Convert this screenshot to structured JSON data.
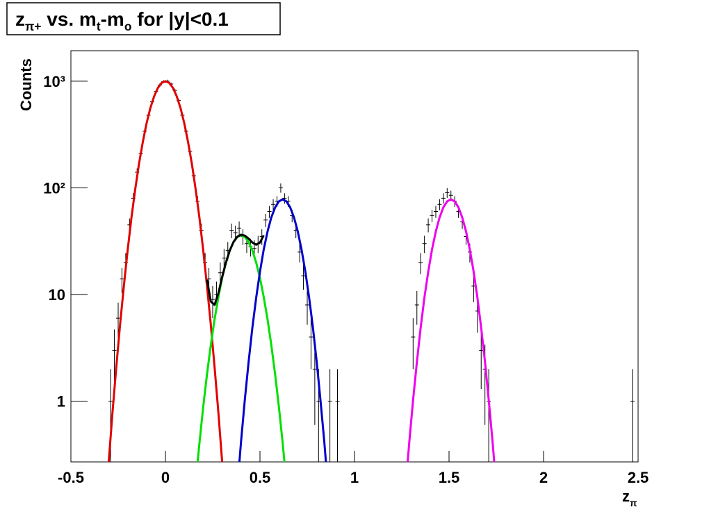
{
  "chart_data": {
    "type": "errorbar",
    "title_parts": [
      {
        "text": "z"
      },
      {
        "text": "π+",
        "sub": true
      },
      {
        "text": " vs. m"
      },
      {
        "text": "t",
        "sub": true
      },
      {
        "text": "-m"
      },
      {
        "text": "o",
        "sub": true
      },
      {
        "text": " for |y|<0.1"
      }
    ],
    "ylabel": "Counts",
    "xlabel_parts": [
      {
        "text": "z"
      },
      {
        "text": "π",
        "sub": true
      }
    ],
    "xlim": [
      -0.5,
      2.5
    ],
    "xticks": [
      -0.5,
      0,
      0.5,
      1,
      1.5,
      2,
      2.5
    ],
    "ylim": [
      0.27,
      1930
    ],
    "yscale": "log",
    "yticks": [
      1,
      10,
      {
        "value": 100,
        "label": "10²"
      },
      {
        "value": 1000,
        "label": "10³"
      }
    ],
    "series": [
      {
        "type": "errorbar",
        "color": "#000000",
        "x": [
          -0.29,
          -0.27,
          -0.25,
          -0.23,
          -0.21,
          -0.19,
          -0.17,
          -0.15,
          -0.13,
          -0.11,
          -0.09,
          -0.07,
          -0.05,
          -0.03,
          -0.01,
          0.01,
          0.03,
          0.05,
          0.07,
          0.09,
          0.11,
          0.13,
          0.15,
          0.17,
          0.19,
          0.21,
          0.23,
          0.25,
          0.27,
          0.29,
          0.31,
          0.33,
          0.35,
          0.37,
          0.39,
          0.41,
          0.43,
          0.45,
          0.47,
          0.49,
          0.51,
          0.53,
          0.55,
          0.57,
          0.59,
          0.61,
          0.63,
          0.65,
          0.67,
          0.69,
          0.71,
          0.73,
          0.75,
          0.77,
          0.79,
          0.81,
          0.87,
          0.91,
          1.31,
          1.33,
          1.35,
          1.37,
          1.39,
          1.41,
          1.43,
          1.45,
          1.47,
          1.49,
          1.51,
          1.53,
          1.55,
          1.57,
          1.59,
          1.61,
          1.63,
          1.65,
          1.67,
          1.69,
          1.71,
          2.47
        ],
        "values": [
          1,
          3,
          6,
          14,
          20,
          45,
          80,
          140,
          210,
          340,
          480,
          640,
          800,
          920,
          990,
          1000,
          940,
          820,
          660,
          480,
          340,
          220,
          130,
          75,
          40,
          20,
          14,
          9,
          10,
          16,
          22,
          26,
          40,
          38,
          42,
          35,
          30,
          28,
          27,
          30,
          35,
          50,
          60,
          70,
          75,
          100,
          80,
          75,
          55,
          40,
          25,
          15,
          8,
          4,
          2,
          1,
          1,
          1,
          4,
          8,
          20,
          30,
          45,
          55,
          60,
          70,
          80,
          90,
          85,
          75,
          60,
          48,
          35,
          25,
          12,
          7,
          3,
          2,
          1,
          1
        ],
        "errors": [
          1,
          1.7,
          2.4,
          3.7,
          4.5,
          6.7,
          9,
          12,
          14,
          18,
          22,
          25,
          28,
          30,
          31,
          32,
          31,
          29,
          26,
          22,
          18,
          15,
          11,
          9,
          6.3,
          4.5,
          3.7,
          3,
          3.2,
          4,
          4.7,
          5.1,
          6.3,
          6.2,
          6.5,
          5.9,
          5.5,
          5.3,
          5.2,
          5.5,
          5.9,
          7.1,
          7.7,
          8.4,
          8.7,
          10,
          8.9,
          8.7,
          7.4,
          6.3,
          5,
          3.9,
          2.8,
          2,
          1.4,
          1,
          1,
          1,
          2,
          2.8,
          4.5,
          5.5,
          6.7,
          7.4,
          7.7,
          8.4,
          8.9,
          9.5,
          9.2,
          8.7,
          7.7,
          6.9,
          5.9,
          5,
          3.5,
          2.6,
          1.7,
          1.4,
          1,
          1
        ]
      },
      {
        "type": "line",
        "color": "#e00000",
        "x": [
          -0.32,
          -0.3,
          -0.28,
          -0.26,
          -0.24,
          -0.22,
          -0.2,
          -0.18,
          -0.16,
          -0.14,
          -0.12,
          -0.1,
          -0.08,
          -0.06,
          -0.04,
          -0.02,
          0,
          0.02,
          0.04,
          0.06,
          0.08,
          0.1,
          0.12,
          0.14,
          0.16,
          0.18,
          0.2,
          0.22,
          0.24,
          0.26,
          0.28,
          0.3,
          0.32
        ],
        "values": [
          0.087,
          0.27,
          0.78,
          2.09,
          5.2,
          12.0,
          25.9,
          51.9,
          96.6,
          167,
          268,
          401,
          557,
          720,
          864,
          964,
          1000,
          964,
          864,
          720,
          557,
          401,
          268,
          167,
          96.6,
          51.9,
          25.9,
          12.0,
          5.2,
          2.09,
          0.78,
          0.27,
          0.087
        ]
      },
      {
        "type": "line",
        "color": "#00e000",
        "x": [
          0.16,
          0.18,
          0.2,
          0.22,
          0.24,
          0.26,
          0.28,
          0.3,
          0.32,
          0.34,
          0.36,
          0.38,
          0.4,
          0.42,
          0.44,
          0.46,
          0.48,
          0.5,
          0.52,
          0.54,
          0.56,
          0.58,
          0.6,
          0.62,
          0.64
        ],
        "values": [
          0.17,
          0.41,
          0.89,
          1.79,
          3.37,
          5.86,
          9.49,
          14.3,
          19.9,
          25.8,
          31.0,
          34.7,
          36,
          34.7,
          31.0,
          25.8,
          19.9,
          14.3,
          9.49,
          5.86,
          3.37,
          1.79,
          0.89,
          0.41,
          0.17
        ]
      },
      {
        "type": "line",
        "color": "#0000cc",
        "x": [
          0.38,
          0.4,
          0.42,
          0.44,
          0.46,
          0.48,
          0.5,
          0.52,
          0.54,
          0.56,
          0.58,
          0.6,
          0.62,
          0.64,
          0.66,
          0.68,
          0.7,
          0.72,
          0.74,
          0.76,
          0.78,
          0.8,
          0.82,
          0.84,
          0.86
        ],
        "values": [
          0.154,
          0.42,
          1.03,
          2.35,
          4.9,
          9.39,
          16.4,
          26.4,
          39.0,
          52.8,
          65.6,
          74.7,
          78,
          74.7,
          65.6,
          52.8,
          39.0,
          26.4,
          16.4,
          9.39,
          4.9,
          2.35,
          1.03,
          0.42,
          0.154
        ]
      },
      {
        "type": "line",
        "color": "#ee00ee",
        "x": [
          1.27,
          1.29,
          1.31,
          1.33,
          1.35,
          1.37,
          1.39,
          1.41,
          1.43,
          1.45,
          1.47,
          1.49,
          1.51,
          1.53,
          1.55,
          1.57,
          1.59,
          1.61,
          1.63,
          1.65,
          1.67,
          1.69,
          1.71,
          1.73,
          1.75
        ],
        "values": [
          0.154,
          0.42,
          1.03,
          2.35,
          4.9,
          9.39,
          16.4,
          26.4,
          39.0,
          52.8,
          65.6,
          74.7,
          78,
          74.7,
          65.6,
          52.8,
          39.0,
          26.4,
          16.4,
          9.39,
          4.9,
          2.35,
          1.03,
          0.42,
          0.154
        ]
      },
      {
        "type": "line",
        "color": "#000000",
        "x": [
          0.22,
          0.24,
          0.26,
          0.28,
          0.3,
          0.32,
          0.34,
          0.36,
          0.38,
          0.4,
          0.42,
          0.44,
          0.46,
          0.48,
          0.5,
          0.52
        ],
        "values": [
          13.8,
          8.6,
          8.0,
          10.3,
          14.6,
          19.9,
          25.8,
          31.1,
          34.9,
          36.4,
          35.7,
          33.4,
          30.7,
          29.3,
          30.7,
          35.9
        ]
      }
    ]
  }
}
